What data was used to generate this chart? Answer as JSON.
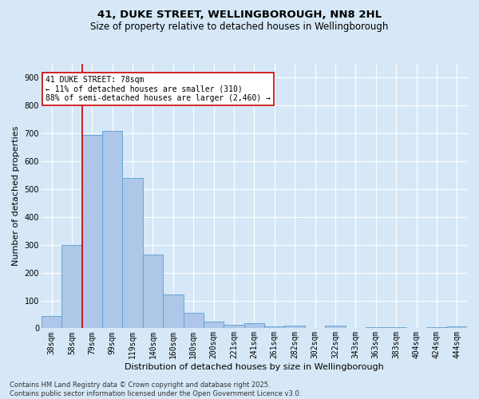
{
  "title_line1": "41, DUKE STREET, WELLINGBOROUGH, NN8 2HL",
  "title_line2": "Size of property relative to detached houses in Wellingborough",
  "xlabel": "Distribution of detached houses by size in Wellingborough",
  "ylabel": "Number of detached properties",
  "categories": [
    "38sqm",
    "58sqm",
    "79sqm",
    "99sqm",
    "119sqm",
    "140sqm",
    "160sqm",
    "180sqm",
    "200sqm",
    "221sqm",
    "241sqm",
    "261sqm",
    "282sqm",
    "302sqm",
    "322sqm",
    "343sqm",
    "363sqm",
    "383sqm",
    "404sqm",
    "424sqm",
    "444sqm"
  ],
  "values": [
    43,
    300,
    695,
    710,
    540,
    265,
    122,
    57,
    25,
    13,
    17,
    8,
    10,
    2,
    10,
    2,
    5,
    3,
    2,
    5,
    7
  ],
  "bar_color": "#aec6e8",
  "bar_edge_color": "#5a9fd4",
  "background_color": "#d6e8f7",
  "grid_color": "#ffffff",
  "vline_x_idx": 2,
  "vline_color": "#cc0000",
  "annotation_text": "41 DUKE STREET: 78sqm\n← 11% of detached houses are smaller (310)\n88% of semi-detached houses are larger (2,460) →",
  "annotation_box_color": "#ffffff",
  "annotation_box_edge": "#cc0000",
  "footer_text": "Contains HM Land Registry data © Crown copyright and database right 2025.\nContains public sector information licensed under the Open Government Licence v3.0.",
  "ylim": [
    0,
    950
  ],
  "yticks": [
    0,
    100,
    200,
    300,
    400,
    500,
    600,
    700,
    800,
    900
  ],
  "title_fontsize": 9.5,
  "subtitle_fontsize": 8.5,
  "xlabel_fontsize": 8,
  "ylabel_fontsize": 8,
  "tick_fontsize": 7,
  "annot_fontsize": 7,
  "footer_fontsize": 6
}
